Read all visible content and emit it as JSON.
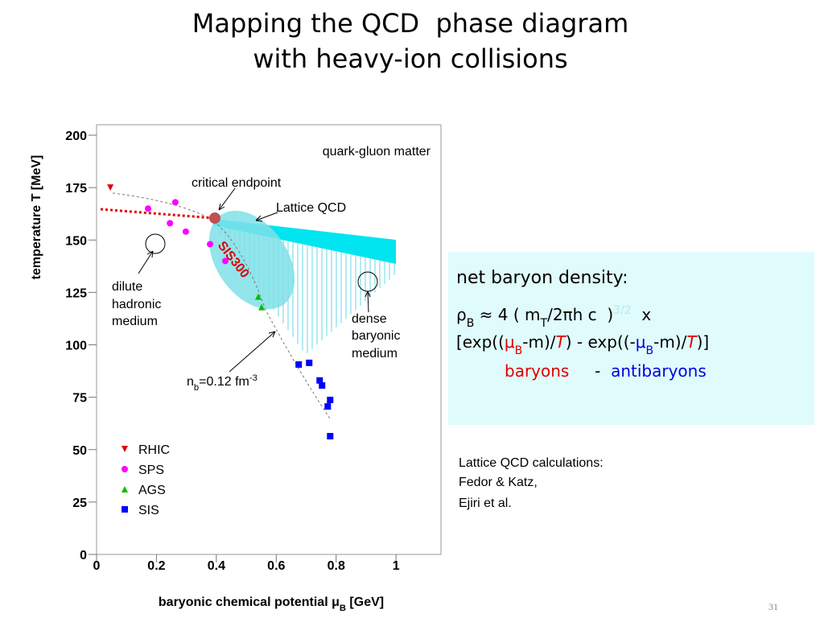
{
  "slide": {
    "title": [
      "Mapping the QCD  phase diagram",
      "with heavy-ion collisions"
    ],
    "box": {
      "lines": [
        [
          {
            "text": "net baryon density:"
          }
        ],
        [
          {
            "text": "ρ"
          },
          {
            "text": "B",
            "sub": true
          },
          {
            "text": " ≈ 4 ( m"
          },
          {
            "text": "T",
            "sub": true
          },
          {
            "text": "/2πh"
          },
          {
            "text": " c  )"
          },
          {
            "text": "3/2",
            "sup": true,
            "color": "#b8e6f0"
          },
          {
            "text": "  x"
          }
        ],
        [
          {
            "text": "[exp(("
          },
          {
            "text": "μ",
            "color": "#e00000"
          },
          {
            "text": "B",
            "sub": true,
            "color": "#e00000"
          },
          {
            "text": "-m)/"
          },
          {
            "text": "T",
            "color": "#e00000",
            "italic": true
          },
          {
            "text": ") - exp((-"
          },
          {
            "text": "μ",
            "color": "#0000e0"
          },
          {
            "text": "B",
            "sub": true,
            "color": "#0000e0"
          },
          {
            "text": "-m)/"
          },
          {
            "text": "T",
            "color": "#e00000",
            "italic": true
          },
          {
            "text": ")]"
          }
        ],
        [
          {
            "text": "baryons",
            "color": "#e00000"
          },
          {
            "text": "     -  "
          },
          {
            "text": "antibaryons",
            "color": "#0000e0"
          }
        ]
      ]
    },
    "notes": [
      "Lattice QCD calculations:",
      "Fedor & Katz,",
      "Ejiri et al."
    ],
    "page_number": "31"
  },
  "chart_data": {
    "type": "scatter",
    "ylabel": "temperature T [MeV]",
    "xlabel": [
      {
        "text": "baryonic chemical potential μ"
      },
      {
        "text": "B",
        "sub": true
      },
      {
        "text": " [GeV]"
      }
    ],
    "xlim": [
      0,
      1.15
    ],
    "ylim": [
      0,
      205
    ],
    "xticks": [
      0,
      0.2,
      0.4,
      0.6,
      0.8,
      1
    ],
    "yticks": [
      0,
      25,
      50,
      75,
      100,
      125,
      150,
      175,
      200
    ],
    "legend": "lower left",
    "annotations": [
      "quark-gluon matter",
      "critical endpoint",
      "Lattice QCD",
      "SIS300",
      "dilute",
      "hadronic",
      "medium",
      "dense",
      "baryonic",
      "medium"
    ],
    "density_label": [
      {
        "text": "n"
      },
      {
        "text": "b",
        "sub": true
      },
      {
        "text": "=0.12 fm"
      },
      {
        "text": "-3",
        "sup": true
      }
    ],
    "series": [
      {
        "name": "RHIC",
        "color": "#e00000",
        "marker": "triangle-down",
        "x": [
          0.046
        ],
        "values": [
          175
        ]
      },
      {
        "name": "SPS",
        "color": "#ff00ff",
        "marker": "circle",
        "x": [
          0.172,
          0.263,
          0.245,
          0.298,
          0.379,
          0.43
        ],
        "values": [
          165,
          168,
          158,
          154,
          148,
          140
        ]
      },
      {
        "name": "AGS",
        "color": "#00c000",
        "marker": "triangle",
        "x": [
          0.54,
          0.551
        ],
        "values": [
          123,
          118
        ]
      },
      {
        "name": "SIS",
        "color": "#0000ff",
        "marker": "square",
        "x": [
          0.675,
          0.71,
          0.745,
          0.753,
          0.78,
          0.772,
          0.78
        ],
        "values": [
          90.6,
          91.4,
          83,
          80.6,
          73.7,
          70.6,
          56.4
        ]
      }
    ]
  }
}
